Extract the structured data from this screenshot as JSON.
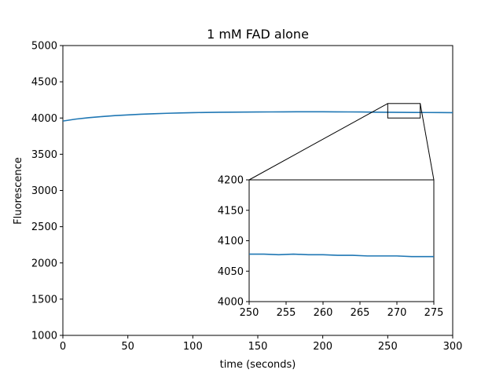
{
  "chart_data": {
    "type": "line",
    "title": "1 mM FAD alone",
    "xlabel": "time (seconds)",
    "ylabel": "Fluorescence",
    "xlim": [
      0,
      300
    ],
    "ylim": [
      1000,
      5000
    ],
    "xticks": [
      0,
      50,
      100,
      150,
      200,
      250,
      300
    ],
    "yticks": [
      1000,
      1500,
      2000,
      2500,
      3000,
      3500,
      4000,
      4500,
      5000
    ],
    "grid": false,
    "color": "#1f77b4",
    "series": [
      {
        "x": [
          0,
          10,
          20,
          30,
          40,
          50,
          60,
          70,
          80,
          90,
          100,
          110,
          120,
          130,
          140,
          150,
          160,
          170,
          180,
          190,
          200,
          210,
          220,
          230,
          240,
          250,
          260,
          270,
          280,
          290,
          300
        ],
        "values": [
          3958,
          3985,
          4005,
          4020,
          4033,
          4043,
          4052,
          4059,
          4065,
          4070,
          4074,
          4077,
          4079,
          4081,
          4082,
          4083,
          4084,
          4085,
          4086,
          4086,
          4086,
          4085,
          4084,
          4083,
          4081,
          4079,
          4078,
          4077,
          4076,
          4075,
          4074
        ]
      }
    ],
    "inset": {
      "xlim": [
        250,
        275
      ],
      "ylim": [
        4000,
        4200
      ],
      "xticks": [
        250,
        255,
        260,
        265,
        270,
        275
      ],
      "yticks": [
        4000,
        4050,
        4100,
        4150,
        4200
      ],
      "series": [
        {
          "x": [
            250,
            252,
            254,
            256,
            258,
            260,
            262,
            264,
            266,
            268,
            270,
            272,
            274,
            275
          ],
          "values": [
            4078,
            4078,
            4077,
            4078,
            4077,
            4077,
            4076,
            4076,
            4075,
            4075,
            4075,
            4074,
            4074,
            4074
          ]
        }
      ]
    }
  }
}
